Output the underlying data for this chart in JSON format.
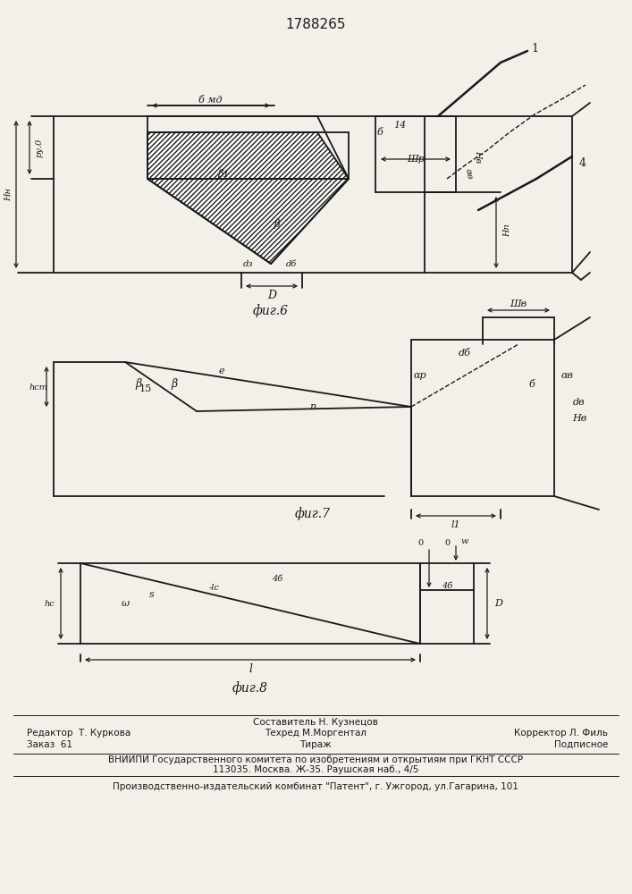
{
  "title": "1788265",
  "bg_color": "#f2f0e8",
  "lc": "#1a1a1a",
  "fig6_caption": "фиг.6",
  "fig7_caption": "фиг.7",
  "fig8_caption": "фиг.8",
  "footer_editor": "Редактор  Т. Куркова",
  "footer_composer": "Составитель Н. Кузнецов",
  "footer_tech": "Техред М.Моргентал",
  "footer_corrector": "Корректор Л. Филь",
  "footer_order": "Заказ  61",
  "footer_copies": "Тираж",
  "footer_signed": "Подписное",
  "footer_vniipи": "ВНИИПИ Государственного комитета по изобретениям и открытиям при ГКНТ СССР",
  "footer_address": "113035. Москва. Ж-35. Раушская наб., 4/5",
  "footer_plant": "Производственно-издательский комбинат \"Патент\", г. Ужгород, ул.Гагарина, 101"
}
